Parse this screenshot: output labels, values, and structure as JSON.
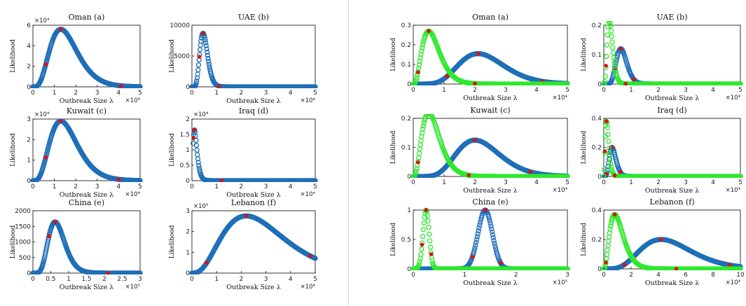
{
  "colors": {
    "blue": "#1f6fb8",
    "green": "#2ee82e",
    "red": "#e01010",
    "axis": "#000000"
  },
  "chart_data": [
    {
      "panel": "left-1",
      "type": "scatter",
      "title": "Oman (a)",
      "xlabel": "Outbreak Size λ",
      "ylabel": "Likelihood",
      "xlim": [
        0,
        5
      ],
      "ylim": [
        0,
        6
      ],
      "xticks": [
        "0",
        "1",
        "2",
        "3",
        "4",
        "5"
      ],
      "yticks": [
        "0",
        "2",
        "4",
        "6"
      ],
      "x_exp": "×10⁴",
      "y_exp": "×10⁴",
      "series": [
        {
          "color": "blue",
          "curve": "gamma",
          "peak_x": 1.3,
          "peak_y": 5.6,
          "k": 4,
          "x_start": 0,
          "x_end": 5,
          "red_x": [
            0.6,
            1.3,
            4.1
          ]
        }
      ]
    },
    {
      "panel": "left-2",
      "type": "scatter",
      "title": "UAE (b)",
      "xlabel": "Outbreak Size λ",
      "ylabel": "Likelihood",
      "xlim": [
        0,
        5
      ],
      "ylim": [
        0,
        10000
      ],
      "xticks": [
        "0",
        "1",
        "2",
        "3",
        "4",
        "5"
      ],
      "yticks": [
        "0",
        "5000",
        "10000"
      ],
      "x_exp": "×10⁴",
      "y_exp": "",
      "series": [
        {
          "color": "blue",
          "curve": "gamma",
          "peak_x": 0.45,
          "peak_y": 8700,
          "k": 8,
          "x_start": 0,
          "x_end": 5,
          "red_x": [
            0.3,
            0.45,
            1.1
          ]
        }
      ]
    },
    {
      "panel": "left-3",
      "type": "scatter",
      "title": "Kuwait (c)",
      "xlabel": "Outbreak Size λ",
      "ylabel": "Likelihood",
      "xlim": [
        0,
        5
      ],
      "ylim": [
        0,
        3
      ],
      "xticks": [
        "0",
        "1",
        "2",
        "3",
        "4",
        "5"
      ],
      "yticks": [
        "0",
        "1",
        "2",
        "3"
      ],
      "x_exp": "×10⁴",
      "y_exp": "×10⁴",
      "series": [
        {
          "color": "blue",
          "curve": "gamma",
          "peak_x": 1.3,
          "peak_y": 2.9,
          "k": 4,
          "x_start": 0,
          "x_end": 5,
          "red_x": [
            0.6,
            1.3,
            4.0
          ]
        }
      ]
    },
    {
      "panel": "left-4",
      "type": "scatter",
      "title": "Iraq (d)",
      "xlabel": "Outbreak Size λ",
      "ylabel": "Likelihood",
      "xlim": [
        0,
        5
      ],
      "ylim": [
        0,
        2
      ],
      "xticks": [
        "0",
        "1",
        "2",
        "3",
        "4",
        "5"
      ],
      "yticks": [
        "0",
        "0.5",
        "1",
        "1.5",
        "2"
      ],
      "x_exp": "×10⁴",
      "y_exp": "×10⁴",
      "series": [
        {
          "color": "blue",
          "curve": "gamma",
          "peak_x": 0.1,
          "peak_y": 1.65,
          "k": 1.6,
          "x_start": 0.05,
          "x_end": 5,
          "red_x": [
            0.06,
            0.1,
            1.2
          ]
        }
      ]
    },
    {
      "panel": "left-5",
      "type": "scatter",
      "title": "China (e)",
      "xlabel": "Outbreak Size λ",
      "ylabel": "Likelihood",
      "xlim": [
        0,
        3
      ],
      "ylim": [
        0,
        2000
      ],
      "xticks": [
        "0",
        "0.5",
        "1",
        "1.5",
        "2",
        "2.5",
        "3"
      ],
      "yticks": [
        "0",
        "500",
        "1000",
        "1500",
        "2000"
      ],
      "x_exp": "×10⁵",
      "y_exp": "",
      "series": [
        {
          "color": "blue",
          "curve": "gamma",
          "peak_x": 0.62,
          "peak_y": 1640,
          "k": 7,
          "x_start": 0,
          "x_end": 3,
          "red_x": [
            0.45,
            0.62,
            2.1
          ]
        }
      ]
    },
    {
      "panel": "left-6",
      "type": "scatter",
      "title": "Lebanon (f)",
      "xlabel": "Outbreak Size λ",
      "ylabel": "Likelihood",
      "xlim": [
        0,
        5
      ],
      "ylim": [
        0,
        3
      ],
      "xticks": [
        "0",
        "1",
        "2",
        "3",
        "4",
        "5"
      ],
      "yticks": [
        "0",
        "1",
        "2",
        "3"
      ],
      "x_exp": "×10⁴",
      "y_exp": "×10⁵",
      "series": [
        {
          "color": "blue",
          "curve": "gamma",
          "peak_x": 2.2,
          "peak_y": 2.75,
          "k": 3,
          "x_start": 0,
          "x_end": 5,
          "red_x": [
            0.6,
            2.2,
            4.8
          ]
        }
      ]
    },
    {
      "panel": "right-1",
      "type": "scatter",
      "title": "Oman (a)",
      "xlabel": "Outbreak Size λ",
      "ylabel": "Likelihood",
      "xlim": [
        0,
        5
      ],
      "ylim": [
        0,
        0.3
      ],
      "xticks": [
        "0",
        "1",
        "2",
        "3",
        "4",
        "5"
      ],
      "yticks": [
        "0",
        "0.1",
        "0.2",
        "0.3"
      ],
      "x_exp": "×10⁴",
      "y_exp": "",
      "series": [
        {
          "color": "blue",
          "curve": "gamma",
          "peak_x": 2.1,
          "peak_y": 0.155,
          "k": 8,
          "x_start": 0,
          "x_end": 5,
          "red_x": [
            1.1,
            2.1,
            4.2
          ]
        },
        {
          "color": "green",
          "curve": "gamma",
          "peak_x": 0.5,
          "peak_y": 0.27,
          "k": 3,
          "x_start": 0,
          "x_end": 5,
          "red_x": [
            0.15,
            0.5,
            2.0
          ]
        }
      ]
    },
    {
      "panel": "right-2",
      "type": "scatter",
      "title": "UAE (b)",
      "xlabel": "Outbreak Size λ",
      "ylabel": "Likelihood",
      "xlim": [
        0,
        5
      ],
      "ylim": [
        0,
        0.2
      ],
      "xticks": [
        "0",
        "1",
        "2",
        "3",
        "4",
        "5"
      ],
      "yticks": [
        "0",
        "0.1",
        "0.2"
      ],
      "x_exp": "×10⁴",
      "y_exp": "",
      "series": [
        {
          "color": "blue",
          "curve": "gamma",
          "peak_x": 0.62,
          "peak_y": 0.12,
          "k": 10,
          "x_start": 0,
          "x_end": 5,
          "red_x": [
            0.4,
            0.62,
            1.1
          ]
        },
        {
          "color": "green",
          "curve": "gamma",
          "peak_x": 0.2,
          "peak_y": 0.22,
          "k": 4,
          "x_start": 0,
          "x_end": 5,
          "red_x": [
            0.08,
            0.2,
            0.8
          ]
        }
      ]
    },
    {
      "panel": "right-3",
      "type": "scatter",
      "title": "Kuwait (c)",
      "xlabel": "Outbreak Size λ",
      "ylabel": "Likelihood",
      "xlim": [
        0,
        5
      ],
      "ylim": [
        0,
        0.2
      ],
      "xticks": [
        "0",
        "1",
        "2",
        "3",
        "4",
        "5"
      ],
      "yticks": [
        "0",
        "0.1",
        "0.2"
      ],
      "x_exp": "×10⁴",
      "y_exp": "",
      "series": [
        {
          "color": "blue",
          "curve": "gamma",
          "peak_x": 2.0,
          "peak_y": 0.125,
          "k": 8,
          "x_start": 0,
          "x_end": 5,
          "red_x": [
            1.2,
            2.0,
            3.8
          ]
        },
        {
          "color": "green",
          "curve": "gamma",
          "peak_x": 0.5,
          "peak_y": 0.22,
          "k": 3,
          "x_start": 0,
          "x_end": 5,
          "red_x": [
            0.15,
            0.5,
            1.8
          ]
        }
      ]
    },
    {
      "panel": "right-4",
      "type": "scatter",
      "title": "Iraq (d)",
      "xlabel": "Outbreak Size λ",
      "ylabel": "Likelihood",
      "xlim": [
        0,
        5
      ],
      "ylim": [
        0,
        0.4
      ],
      "xticks": [
        "0",
        "1",
        "2",
        "3",
        "4",
        "5"
      ],
      "yticks": [
        "0",
        "0.2",
        "0.4"
      ],
      "x_exp": "×10⁴",
      "y_exp": "",
      "series": [
        {
          "color": "blue",
          "curve": "gamma",
          "peak_x": 0.3,
          "peak_y": 0.2,
          "k": 6,
          "x_start": 0,
          "x_end": 5,
          "red_x": [
            0.1,
            0.3,
            0.6
          ]
        },
        {
          "color": "green",
          "curve": "gamma",
          "peak_x": 0.1,
          "peak_y": 0.38,
          "k": 2.5,
          "x_start": 0,
          "x_end": 5,
          "red_x": [
            0.04,
            0.1,
            0.4
          ]
        }
      ]
    },
    {
      "panel": "right-5",
      "type": "scatter",
      "title": "China (e)",
      "xlabel": "Outbreak Size λ",
      "ylabel": "Likelihood",
      "xlim": [
        0,
        3
      ],
      "ylim": [
        0,
        1
      ],
      "xticks": [
        "0",
        "1",
        "2",
        "3"
      ],
      "yticks": [
        "0",
        "0.5",
        "1"
      ],
      "x_exp": "×10⁵",
      "y_exp": "",
      "series": [
        {
          "color": "blue",
          "curve": "gauss",
          "peak_x": 1.4,
          "peak_y": 1.0,
          "sigma": 0.14,
          "x_start": 0,
          "x_end": 3,
          "red_x": [
            1.15,
            1.4,
            1.7
          ]
        },
        {
          "color": "green",
          "curve": "gauss",
          "peak_x": 0.25,
          "peak_y": 1.0,
          "sigma": 0.06,
          "x_start": 0,
          "x_end": 3,
          "red_x": [
            0.17,
            0.25,
            0.35
          ]
        }
      ]
    },
    {
      "panel": "right-6",
      "type": "scatter",
      "title": "Lebanon (f)",
      "xlabel": "Outbreak Size λ",
      "ylabel": "Likelihood",
      "xlim": [
        0,
        10
      ],
      "ylim": [
        0,
        0.4
      ],
      "xticks": [
        "0",
        "2",
        "4",
        "6",
        "8",
        "10"
      ],
      "yticks": [
        "0",
        "0.2",
        "0.4"
      ],
      "x_exp": "×10⁴",
      "y_exp": "",
      "series": [
        {
          "color": "blue",
          "curve": "gamma",
          "peak_x": 4.2,
          "peak_y": 0.2,
          "k": 5,
          "x_start": 0,
          "x_end": 10,
          "red_x": [
            1.5,
            4.2,
            9.2
          ]
        },
        {
          "color": "green",
          "curve": "gamma",
          "peak_x": 0.8,
          "peak_y": 0.37,
          "k": 2.5,
          "x_start": 0,
          "x_end": 10,
          "red_x": [
            0.15,
            0.8,
            5.3
          ]
        }
      ]
    }
  ]
}
